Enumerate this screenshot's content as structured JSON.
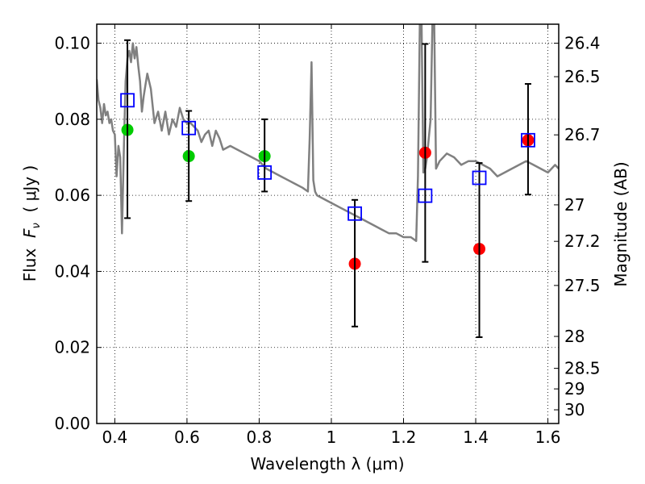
{
  "chart_data": {
    "type": "scatter",
    "xlabel": "Wavelength  λ (μm)",
    "ylabel": "Flux  F_ν  ( μJy )",
    "ylabel_parts": {
      "prefix": "Flux  ",
      "var": "F",
      "sub": "ν",
      "unit": "  ( μJy )"
    },
    "y2label": "Magnitude (AB)",
    "xlim": [
      0.35,
      1.63
    ],
    "ylim": [
      0.0,
      0.105
    ],
    "grid": true,
    "x_ticks": [
      0.4,
      0.6,
      0.8,
      1.0,
      1.2,
      1.4,
      1.6
    ],
    "x_tick_labels": [
      "0.4",
      "0.6",
      "0.8",
      "1",
      "1.2",
      "1.4",
      "1.6"
    ],
    "y_ticks": [
      0.0,
      0.02,
      0.04,
      0.06,
      0.08,
      0.1
    ],
    "y_tick_labels": [
      "0.00",
      "0.02",
      "0.04",
      "0.06",
      "0.08",
      "0.10"
    ],
    "y2_ticks": [
      {
        "label": "26.4",
        "flux": 0.1
      },
      {
        "label": "26.5",
        "flux": 0.0912
      },
      {
        "label": "26.7",
        "flux": 0.0759
      },
      {
        "label": "27",
        "flux": 0.0575
      },
      {
        "label": "27.2",
        "flux": 0.0479
      },
      {
        "label": "27.5",
        "flux": 0.0363
      },
      {
        "label": "28",
        "flux": 0.0229
      },
      {
        "label": "28.5",
        "flux": 0.0145
      },
      {
        "label": "29",
        "flux": 0.0091
      },
      {
        "label": "30",
        "flux": 0.0036
      }
    ],
    "colors": {
      "model": "#808080",
      "green": "#00cc00",
      "red": "#ff0000",
      "square": "#0000ff",
      "errorbar": "#000000"
    },
    "series": [
      {
        "name": "model spectrum",
        "kind": "line",
        "x": [
          0.35,
          0.355,
          0.36,
          0.365,
          0.37,
          0.375,
          0.38,
          0.385,
          0.39,
          0.395,
          0.4,
          0.405,
          0.41,
          0.415,
          0.42,
          0.425,
          0.43,
          0.435,
          0.44,
          0.445,
          0.45,
          0.455,
          0.46,
          0.465,
          0.47,
          0.475,
          0.48,
          0.485,
          0.49,
          0.5,
          0.51,
          0.52,
          0.53,
          0.54,
          0.55,
          0.56,
          0.57,
          0.58,
          0.59,
          0.6,
          0.61,
          0.62,
          0.63,
          0.64,
          0.65,
          0.66,
          0.67,
          0.68,
          0.69,
          0.7,
          0.72,
          0.74,
          0.76,
          0.78,
          0.8,
          0.82,
          0.84,
          0.86,
          0.88,
          0.9,
          0.92,
          0.935,
          0.94,
          0.945,
          0.95,
          0.955,
          0.96,
          0.98,
          1.0,
          1.02,
          1.04,
          1.06,
          1.08,
          1.1,
          1.12,
          1.14,
          1.16,
          1.18,
          1.2,
          1.22,
          1.235,
          1.24,
          1.245,
          1.25,
          1.255,
          1.26,
          1.265,
          1.27,
          1.275,
          1.28,
          1.285,
          1.29,
          1.3,
          1.32,
          1.34,
          1.36,
          1.38,
          1.4,
          1.42,
          1.44,
          1.46,
          1.48,
          1.5,
          1.52,
          1.54,
          1.56,
          1.58,
          1.6,
          1.62,
          1.63
        ],
        "y": [
          0.0905,
          0.085,
          0.083,
          0.079,
          0.084,
          0.081,
          0.082,
          0.079,
          0.08,
          0.077,
          0.076,
          0.065,
          0.073,
          0.07,
          0.05,
          0.072,
          0.09,
          0.096,
          0.098,
          0.095,
          0.1,
          0.096,
          0.099,
          0.094,
          0.09,
          0.082,
          0.086,
          0.089,
          0.092,
          0.088,
          0.079,
          0.082,
          0.077,
          0.082,
          0.076,
          0.08,
          0.078,
          0.083,
          0.08,
          0.079,
          0.079,
          0.078,
          0.077,
          0.074,
          0.076,
          0.077,
          0.073,
          0.077,
          0.075,
          0.072,
          0.073,
          0.072,
          0.071,
          0.07,
          0.069,
          0.067,
          0.066,
          0.065,
          0.064,
          0.063,
          0.062,
          0.061,
          0.075,
          0.095,
          0.064,
          0.061,
          0.06,
          0.059,
          0.058,
          0.057,
          0.056,
          0.055,
          0.054,
          0.053,
          0.052,
          0.051,
          0.05,
          0.05,
          0.049,
          0.049,
          0.048,
          0.065,
          0.105,
          0.105,
          0.066,
          0.067,
          0.07,
          0.075,
          0.08,
          0.105,
          0.105,
          0.067,
          0.069,
          0.071,
          0.07,
          0.068,
          0.069,
          0.069,
          0.068,
          0.067,
          0.065,
          0.066,
          0.067,
          0.068,
          0.069,
          0.068,
          0.067,
          0.066,
          0.068,
          0.067
        ]
      },
      {
        "name": "green points",
        "kind": "circle",
        "x": [
          0.435,
          0.605,
          0.815
        ],
        "y": [
          0.0772,
          0.0703,
          0.0703
        ]
      },
      {
        "name": "red points",
        "kind": "circle",
        "x": [
          1.065,
          1.26,
          1.41,
          1.545
        ],
        "y": [
          0.042,
          0.0712,
          0.0459,
          0.0745
        ]
      },
      {
        "name": "model photometry",
        "kind": "square",
        "x": [
          0.435,
          0.605,
          0.815,
          1.065,
          1.26,
          1.41,
          1.545
        ],
        "y": [
          0.085,
          0.0777,
          0.066,
          0.0552,
          0.0599,
          0.0646,
          0.0745
        ]
      },
      {
        "name": "error bars",
        "kind": "errorbar",
        "x": [
          0.435,
          0.605,
          0.815,
          1.065,
          1.26,
          1.41,
          1.545
        ],
        "low": [
          0.054,
          0.0585,
          0.061,
          0.0255,
          0.0425,
          0.0227,
          0.0602
        ],
        "high": [
          0.1008,
          0.0822,
          0.08,
          0.0588,
          0.0998,
          0.0685,
          0.0893
        ]
      }
    ]
  }
}
